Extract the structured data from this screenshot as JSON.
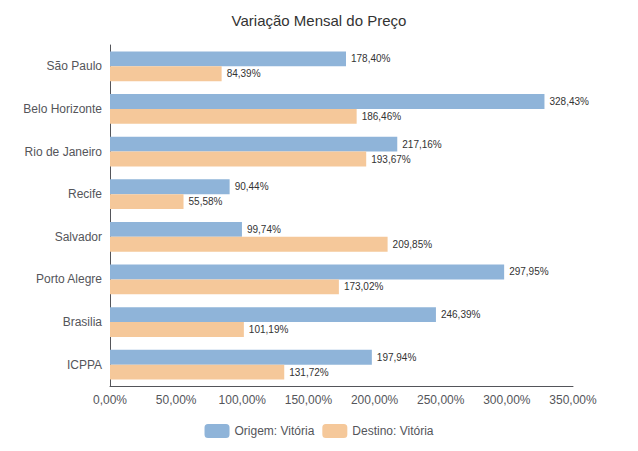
{
  "chart_data": {
    "type": "bar",
    "orientation": "horizontal",
    "title": "Variação Mensal do Preço",
    "categories": [
      "São Paulo",
      "Belo Horizonte",
      "Rio de Janeiro",
      "Recife",
      "Salvador",
      "Porto Alegre",
      "Brasilia",
      "ICPPA"
    ],
    "series": [
      {
        "name": "Origem: Vitória",
        "color": "#8FB4D9",
        "values": [
          178.4,
          328.43,
          217.16,
          90.44,
          99.74,
          297.95,
          246.39,
          197.94
        ],
        "value_labels": [
          "178,40%",
          "328,43%",
          "217,16%",
          "90,44%",
          "99,74%",
          "297,95%",
          "246,39%",
          "197,94%"
        ]
      },
      {
        "name": "Destino: Vitória",
        "color": "#F5C89A",
        "values": [
          84.39,
          186.46,
          193.67,
          55.58,
          209.85,
          173.02,
          101.19,
          131.72
        ],
        "value_labels": [
          "84,39%",
          "186,46%",
          "193,67%",
          "55,58%",
          "209,85%",
          "173,02%",
          "101,19%",
          "131,72%"
        ]
      }
    ],
    "xlim": [
      0,
      350
    ],
    "xticks": [
      {
        "value": 0,
        "label": "0,00%"
      },
      {
        "value": 50,
        "label": "50,00%"
      },
      {
        "value": 100,
        "label": "100,00%"
      },
      {
        "value": 150,
        "label": "150,00%"
      },
      {
        "value": 200,
        "label": "200,00%"
      },
      {
        "value": 250,
        "label": "250,00%"
      },
      {
        "value": 300,
        "label": "300,00%"
      },
      {
        "value": 350,
        "label": "350,00%"
      }
    ],
    "grid": false,
    "legend": "bottom",
    "data_labels": true
  }
}
